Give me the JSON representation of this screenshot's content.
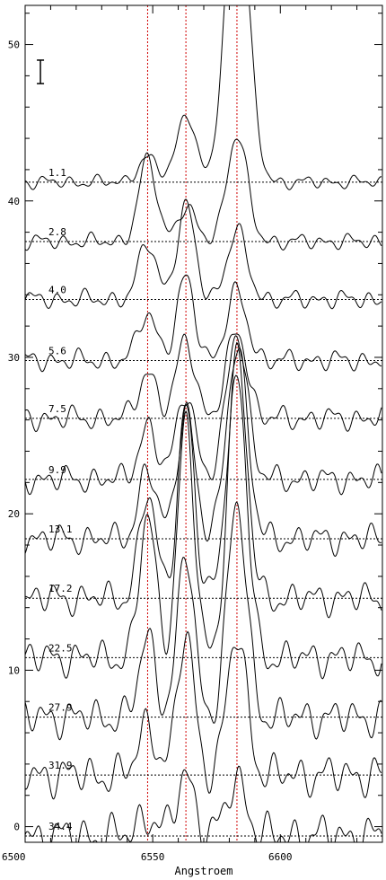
{
  "chart_data": {
    "type": "line",
    "title": "",
    "xlabel": "Angstroem",
    "ylabel": "",
    "xlim": [
      6500,
      6640
    ],
    "ylim": [
      -1,
      52.5
    ],
    "x_ticks": [
      6500,
      6550,
      6600
    ],
    "y_ticks": [
      0,
      10,
      20,
      30,
      40,
      50
    ],
    "x_tick_labels": [
      "6500",
      "6550",
      "6600"
    ],
    "y_tick_labels": [
      "0",
      "10",
      "20",
      "30",
      "40",
      "50"
    ],
    "reference_lines_x": [
      6548,
      6563,
      6583
    ],
    "reference_line_color": "#d00000",
    "curve_color": "#000000",
    "error_bar": {
      "x": 6506,
      "y_low": 47.5,
      "y_high": 49.0
    },
    "spectra": [
      {
        "label": "1.1",
        "baseline": 41.2,
        "peaks": [
          {
            "x": 6548,
            "h": 1.5,
            "w": 4
          },
          {
            "x": 6563,
            "h": 4.5,
            "w": 3.5
          },
          {
            "x": 6583,
            "h": 20.0,
            "w": 4.5
          }
        ]
      },
      {
        "label": "2.8",
        "baseline": 37.4,
        "peaks": [
          {
            "x": 6548,
            "h": 5.2,
            "w": 3.5
          },
          {
            "x": 6563,
            "h": 2.2,
            "w": 3.5
          },
          {
            "x": 6583,
            "h": 6.8,
            "w": 4
          }
        ]
      },
      {
        "label": "4.0",
        "baseline": 33.7,
        "peaks": [
          {
            "x": 6548,
            "h": 3.6,
            "w": 3.5
          },
          {
            "x": 6563,
            "h": 5.9,
            "w": 3.5
          },
          {
            "x": 6583,
            "h": 4.3,
            "w": 4
          }
        ]
      },
      {
        "label": "5.6",
        "baseline": 29.8,
        "peaks": [
          {
            "x": 6548,
            "h": 3.1,
            "w": 3.5
          },
          {
            "x": 6563,
            "h": 5.2,
            "w": 3.5
          },
          {
            "x": 6583,
            "h": 4.3,
            "w": 4
          }
        ]
      },
      {
        "label": "7.5",
        "baseline": 26.1,
        "peaks": [
          {
            "x": 6548,
            "h": 3.0,
            "w": 3.5
          },
          {
            "x": 6563,
            "h": 5.1,
            "w": 3.5
          },
          {
            "x": 6583,
            "h": 5.6,
            "w": 4
          }
        ]
      },
      {
        "label": "9.9",
        "baseline": 22.2,
        "peaks": [
          {
            "x": 6548,
            "h": 3.4,
            "w": 3.5
          },
          {
            "x": 6563,
            "h": 5.7,
            "w": 3.5
          },
          {
            "x": 6583,
            "h": 9.5,
            "w": 4
          }
        ]
      },
      {
        "label": "13.1",
        "baseline": 18.4,
        "peaks": [
          {
            "x": 6548,
            "h": 4.4,
            "w": 3.5
          },
          {
            "x": 6563,
            "h": 8.5,
            "w": 3.3
          },
          {
            "x": 6583,
            "h": 12.5,
            "w": 4
          }
        ]
      },
      {
        "label": "17.2",
        "baseline": 14.6,
        "peaks": [
          {
            "x": 6548,
            "h": 6.6,
            "w": 3.3
          },
          {
            "x": 6563,
            "h": 12.3,
            "w": 3.2
          },
          {
            "x": 6583,
            "h": 15.5,
            "w": 3.8
          }
        ]
      },
      {
        "label": "22.5",
        "baseline": 10.8,
        "peaks": [
          {
            "x": 6548,
            "h": 9.0,
            "w": 3.2
          },
          {
            "x": 6563,
            "h": 15.0,
            "w": 3.2
          },
          {
            "x": 6583,
            "h": 18.0,
            "w": 3.8
          }
        ]
      },
      {
        "label": "27.9",
        "baseline": 7.0,
        "peaks": [
          {
            "x": 6548,
            "h": 5.0,
            "w": 3.3
          },
          {
            "x": 6563,
            "h": 10.5,
            "w": 3.2
          },
          {
            "x": 6583,
            "h": 13.5,
            "w": 3.8
          }
        ]
      },
      {
        "label": "31.9",
        "baseline": 3.3,
        "peaks": [
          {
            "x": 6548,
            "h": 3.3,
            "w": 3.5
          },
          {
            "x": 6563,
            "h": 9.0,
            "w": 3.3
          },
          {
            "x": 6583,
            "h": 8.9,
            "w": 3.8
          }
        ]
      },
      {
        "label": "34.4",
        "baseline": -0.6,
        "peaks": [
          {
            "x": 6548,
            "h": 1.4,
            "w": 3.5
          },
          {
            "x": 6563,
            "h": 3.9,
            "w": 3.5
          },
          {
            "x": 6583,
            "h": 3.5,
            "w": 4
          }
        ]
      }
    ]
  }
}
